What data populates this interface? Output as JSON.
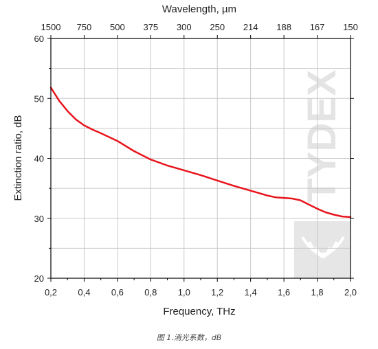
{
  "chart_data": {
    "type": "line",
    "title": "",
    "xlabel": "Frequency, THz",
    "ylabel": "Extinction ratio, dB",
    "top_axis_label": "Wavelength, µm",
    "xlim": [
      0.2,
      2.0
    ],
    "ylim": [
      20,
      60
    ],
    "x_ticks": [
      "0,2",
      "0,4",
      "0,6",
      "0,8",
      "1,0",
      "1,2",
      "1,4",
      "1,6",
      "1,8",
      "2,0"
    ],
    "y_ticks": [
      "20",
      "30",
      "40",
      "50",
      "60"
    ],
    "top_ticks": [
      "1500",
      "750",
      "500",
      "375",
      "300",
      "250",
      "214",
      "188",
      "167",
      "150"
    ],
    "grid": true,
    "series": [
      {
        "color": "#e8141c",
        "x": [
          0.2,
          0.25,
          0.3,
          0.35,
          0.4,
          0.45,
          0.5,
          0.6,
          0.7,
          0.8,
          0.9,
          1.0,
          1.1,
          1.2,
          1.3,
          1.4,
          1.5,
          1.55,
          1.6,
          1.65,
          1.7,
          1.75,
          1.8,
          1.85,
          1.9,
          1.95,
          2.0
        ],
        "y": [
          51.8,
          49.6,
          47.9,
          46.5,
          45.5,
          44.8,
          44.2,
          42.9,
          41.2,
          39.8,
          38.8,
          38.0,
          37.2,
          36.3,
          35.4,
          34.6,
          33.8,
          33.5,
          33.4,
          33.3,
          33.0,
          32.3,
          31.6,
          31.0,
          30.6,
          30.3,
          30.2
        ]
      }
    ]
  },
  "watermark": {
    "text": "TYDEX"
  },
  "caption": "图 1.消光系数，dB"
}
